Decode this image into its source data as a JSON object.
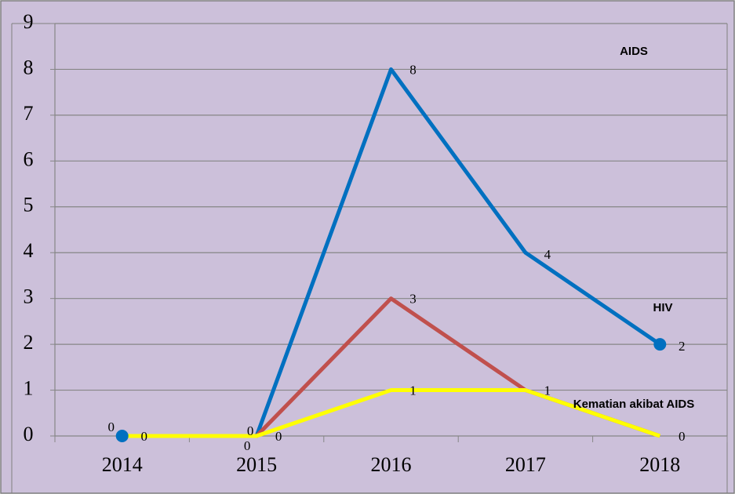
{
  "chart_data": {
    "type": "line",
    "categories": [
      "2014",
      "2015",
      "2016",
      "2017",
      "2018"
    ],
    "series": [
      {
        "name": "HIV",
        "color": "#0070c0",
        "values": [
          0,
          0,
          8,
          4,
          2
        ]
      },
      {
        "name": "AIDS",
        "color": "#c0504d",
        "values": [
          0,
          0,
          3,
          1,
          0
        ]
      },
      {
        "name": "Kematian akibat AIDS",
        "color": "#ffff00",
        "values": [
          0,
          0,
          1,
          1,
          0
        ]
      }
    ],
    "ylim": [
      0,
      9
    ],
    "yticks": [
      0,
      1,
      2,
      3,
      4,
      5,
      6,
      7,
      8,
      9
    ],
    "grid": true
  }
}
